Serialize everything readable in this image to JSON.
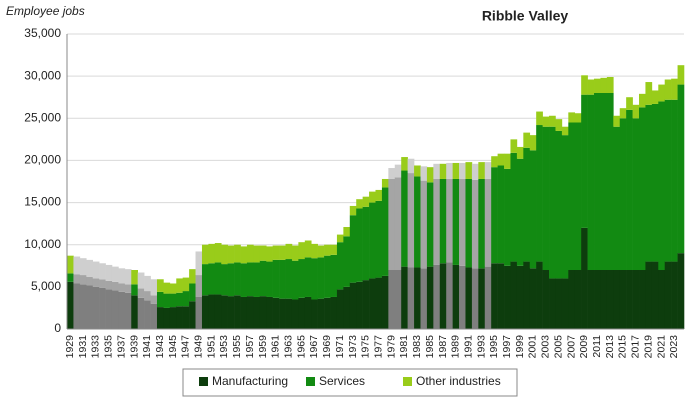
{
  "chart_data": {
    "type": "stacked_bar",
    "title": "Ribble Valley",
    "y_label": "Employee jobs",
    "categories": [
      "1929",
      null,
      "1931",
      null,
      "1933",
      null,
      "1935",
      null,
      "1937",
      null,
      "1939",
      null,
      "1941",
      null,
      "1943",
      null,
      "1945",
      null,
      "1947",
      null,
      "1949",
      null,
      "1951",
      null,
      "1953",
      null,
      "1955",
      null,
      "1957",
      null,
      "1959",
      null,
      "1961",
      null,
      "1963",
      null,
      "1965",
      null,
      "1967",
      null,
      "1969",
      null,
      "1971",
      null,
      "1973",
      null,
      "1975",
      null,
      "1977",
      null,
      "1979",
      null,
      "1981",
      null,
      "1983",
      null,
      "1985",
      null,
      "1987",
      null,
      "1989",
      null,
      "1991",
      null,
      "1993",
      null,
      "1995",
      null,
      "1997",
      null,
      "1999",
      null,
      "2001",
      null,
      "2003",
      null,
      "2005",
      null,
      "2007",
      null,
      "2009",
      null,
      "2011",
      null,
      "2013",
      null,
      "2015",
      null,
      "2017",
      null,
      "2019",
      null,
      "2021",
      null,
      "2023",
      null
    ],
    "series": [
      {
        "name": "Manufacturing",
        "color": "#0d3d0d",
        "estimated_color": "#7f7f7f",
        "values": [
          5600,
          5400,
          5300,
          5200,
          5000,
          4900,
          4700,
          4600,
          4400,
          4300,
          4000,
          3700,
          3400,
          3000,
          2600,
          2500,
          2600,
          2700,
          2700,
          3300,
          3800,
          4000,
          4100,
          4100,
          4000,
          3900,
          4000,
          3800,
          3900,
          3800,
          3900,
          3800,
          3700,
          3600,
          3600,
          3500,
          3700,
          3800,
          3500,
          3600,
          3700,
          3800,
          4700,
          5000,
          5500,
          5600,
          5800,
          6000,
          6100,
          6300,
          7000,
          7000,
          7400,
          7300,
          7300,
          7200,
          7400,
          7600,
          7800,
          7900,
          7600,
          7500,
          7300,
          7200,
          7200,
          7400,
          7800,
          7800,
          7500,
          8000,
          7500,
          8000,
          7200,
          8000,
          7000,
          6000,
          6000,
          6000,
          7000,
          7000,
          12000,
          7000,
          7000,
          7000,
          7000,
          7000,
          7000,
          7000,
          7000,
          7000,
          8000,
          8000,
          7000,
          8000,
          8000,
          9000
        ]
      },
      {
        "name": "Services",
        "color": "#128a12",
        "estimated_color": "#a5a5a5",
        "values": [
          1000,
          1100,
          1100,
          1000,
          1000,
          1000,
          1000,
          1000,
          1000,
          1000,
          1300,
          1100,
          1100,
          1000,
          1800,
          1700,
          1600,
          1600,
          1800,
          2100,
          2600,
          3700,
          3700,
          3800,
          3700,
          3900,
          3900,
          4000,
          4000,
          4100,
          4200,
          4200,
          4500,
          4600,
          4700,
          4600,
          4600,
          4700,
          4900,
          4900,
          5000,
          5000,
          5600,
          6000,
          8000,
          8700,
          8700,
          9000,
          9100,
          10500,
          10800,
          11000,
          11400,
          11200,
          10800,
          10400,
          10000,
          10200,
          10000,
          9900,
          10200,
          10300,
          10500,
          10500,
          10600,
          10400,
          11400,
          11600,
          11500,
          12900,
          12700,
          13500,
          14000,
          16200,
          17000,
          18000,
          17500,
          17000,
          17500,
          17500,
          15800,
          20800,
          21000,
          21000,
          21000,
          17000,
          18000,
          19000,
          18000,
          19300,
          18600,
          18700,
          20000,
          19200,
          19200,
          20000
        ]
      },
      {
        "name": "Other industries",
        "color": "#99cc1a",
        "estimated_color": "#cfcfcf",
        "values": [
          2100,
          2100,
          2000,
          2000,
          2000,
          1900,
          1900,
          1800,
          1800,
          1800,
          1700,
          1900,
          1800,
          1900,
          1500,
          1300,
          1200,
          1700,
          1600,
          1700,
          2800,
          2300,
          2300,
          2300,
          2300,
          2100,
          2100,
          2000,
          2100,
          2000,
          1800,
          1800,
          1700,
          1700,
          1800,
          1800,
          2000,
          2000,
          1700,
          1400,
          1300,
          1200,
          900,
          1100,
          1100,
          1100,
          1200,
          1300,
          1300,
          1000,
          1300,
          1500,
          1600,
          1700,
          1300,
          1700,
          1800,
          1800,
          1800,
          1900,
          1900,
          1900,
          2000,
          1900,
          2000,
          2000,
          1300,
          1400,
          1800,
          1600,
          1400,
          1800,
          1800,
          1600,
          1200,
          1300,
          1400,
          1000,
          1200,
          1100,
          2300,
          1800,
          1700,
          1800,
          1900,
          1300,
          1200,
          1500,
          1600,
          1600,
          2700,
          1600,
          2000,
          2400,
          2500,
          2300
        ]
      }
    ],
    "estimated": [
      false,
      true,
      true,
      true,
      true,
      true,
      true,
      true,
      true,
      true,
      false,
      true,
      true,
      true,
      false,
      false,
      false,
      false,
      false,
      false,
      true,
      false,
      false,
      false,
      false,
      false,
      false,
      false,
      false,
      false,
      false,
      false,
      false,
      false,
      false,
      false,
      false,
      false,
      false,
      false,
      false,
      false,
      false,
      false,
      false,
      false,
      false,
      false,
      false,
      false,
      true,
      true,
      false,
      true,
      false,
      true,
      false,
      true,
      false,
      true,
      false,
      true,
      false,
      true,
      false,
      true,
      false,
      false,
      false,
      false,
      false,
      false,
      false,
      false,
      false,
      false,
      false,
      false,
      false,
      false,
      false,
      false,
      false,
      false,
      false,
      false,
      false,
      false,
      false,
      false,
      false,
      false,
      false,
      false,
      false,
      false
    ],
    "ylim": [
      0,
      35000
    ],
    "yticks": [
      0,
      {
        "value": 5000,
        "label": "5,000"
      },
      {
        "value": 10000,
        "label": "10,000"
      },
      {
        "value": 15000,
        "label": "15,000"
      },
      {
        "value": 20000,
        "label": "20,000"
      },
      {
        "value": 25000,
        "label": "25,000"
      },
      {
        "value": 30000,
        "label": "30,000"
      },
      {
        "value": 35000,
        "label": "35,000"
      }
    ],
    "grid": true,
    "legend": "bottom"
  }
}
